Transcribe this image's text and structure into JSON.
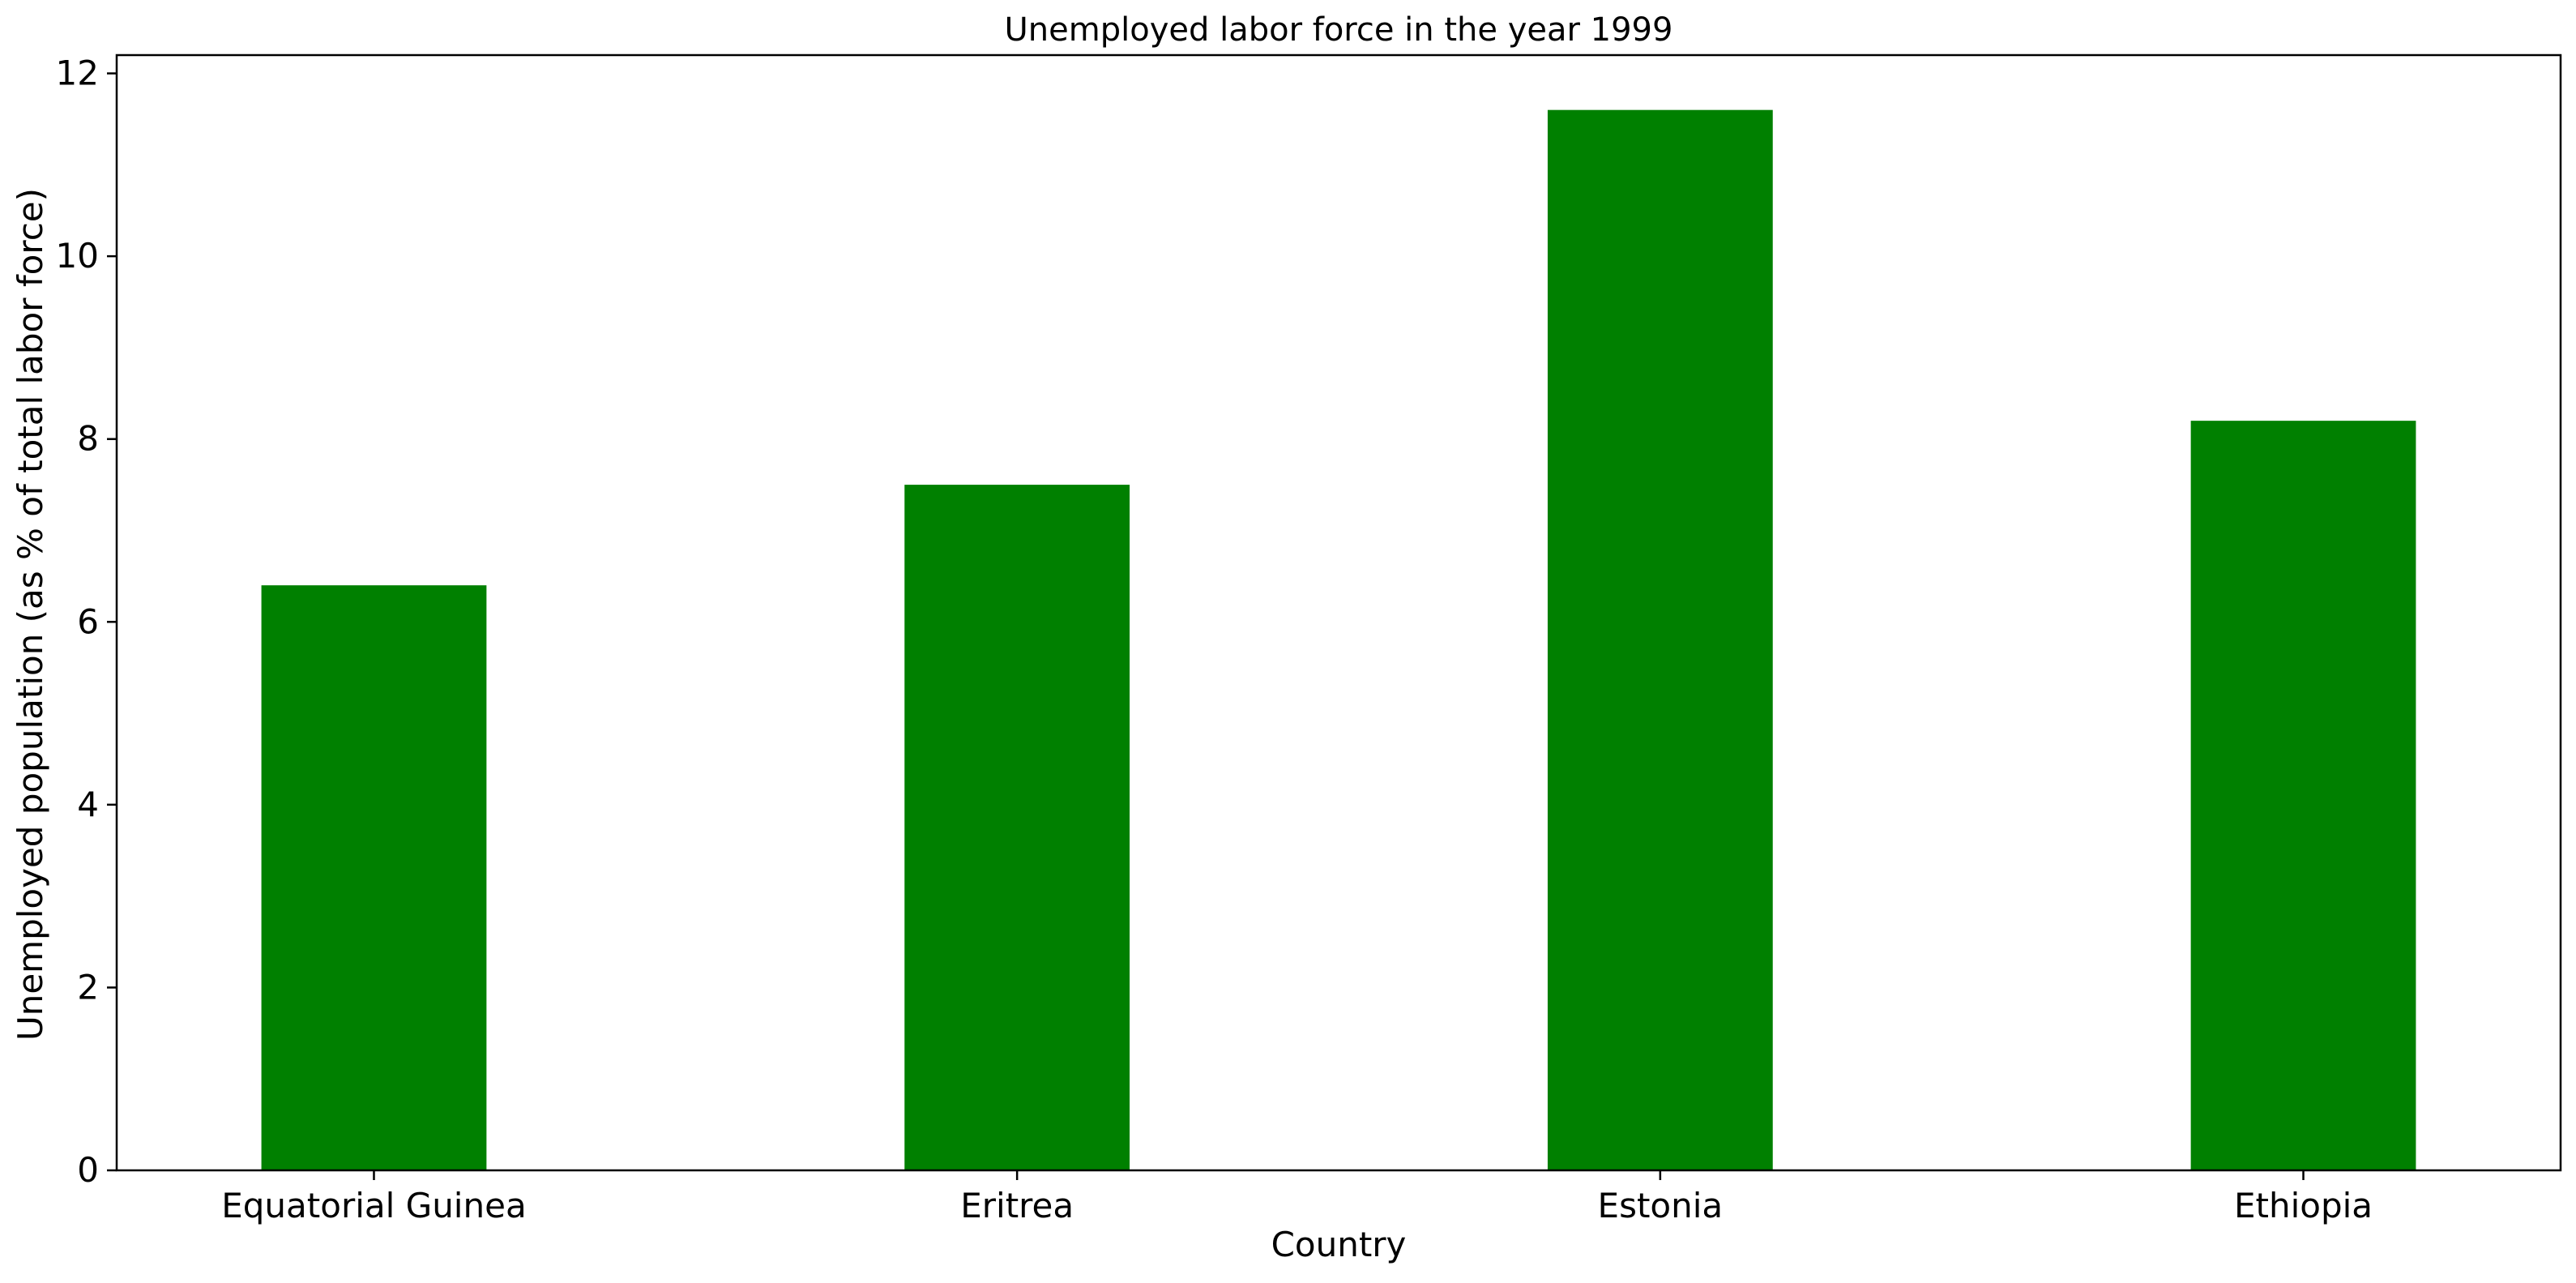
{
  "chart_data": {
    "type": "bar",
    "title": "Unemployed labor force in the year 1999",
    "xlabel": "Country",
    "ylabel": "Unemployed population (as % of total labor force)",
    "categories": [
      "Equatorial Guinea",
      "Eritrea",
      "Estonia",
      "Ethiopia"
    ],
    "values": [
      6.4,
      7.5,
      11.6,
      8.2
    ],
    "ylim": [
      0,
      12.2
    ],
    "yticks": [
      0,
      2,
      4,
      6,
      8,
      10,
      12
    ],
    "bar_color": "#008000",
    "grid": false,
    "legend": "none"
  }
}
